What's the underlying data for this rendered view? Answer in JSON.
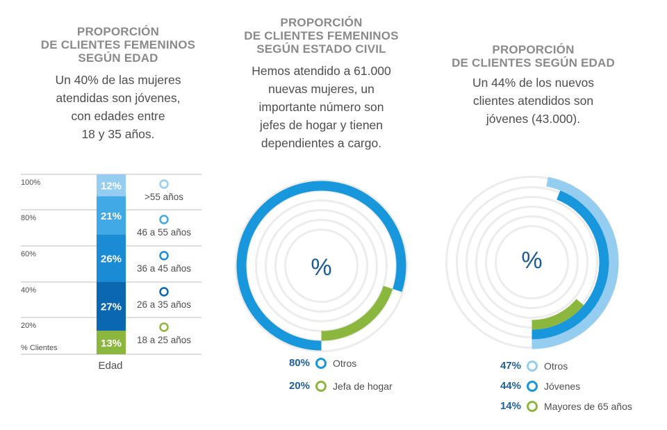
{
  "panels": [
    {
      "title_lines": [
        "PROPORCIÓN",
        "DE CLIENTES FEMENINOS",
        "SEGÚN EDAD"
      ],
      "desc_lines": [
        "Un 40% de las mujeres",
        "atendidas son jóvenes,",
        "con edades entre",
        "18 y 35 años."
      ]
    },
    {
      "title_lines": [
        "PROPORCIÓN",
        "DE CLIENTES FEMENINOS",
        "SEGÚN ESTADO CIVIL"
      ],
      "desc_lines": [
        "Hemos atendido a 61.000",
        "nuevas mujeres, un",
        "importante número son",
        "jefes de hogar y tienen",
        "dependientes a cargo."
      ]
    },
    {
      "title_lines": [
        "PROPORCIÓN",
        "DE CLIENTES SEGÚN EDAD"
      ],
      "desc_lines": [
        "Un 44% de los nuevos",
        "clientes atendidos son",
        "jóvenes (43.000)."
      ]
    }
  ],
  "chart_data": [
    {
      "type": "bar",
      "stacked": true,
      "categories": [
        "Edad"
      ],
      "xlabel": "Edad",
      "ylabel": "% Clientes",
      "y_ticks": [
        "100%",
        "80%",
        "60%",
        "40%",
        "20%"
      ],
      "series": [
        {
          "name": "18 a 25 años",
          "value": 13,
          "label": "13%",
          "color": "#8cb73f"
        },
        {
          "name": "26 a 35 años",
          "value": 27,
          "label": "27%",
          "color": "#0a67b0"
        },
        {
          "name": "36 a 45 años",
          "value": 26,
          "label": "26%",
          "color": "#1b8bd6"
        },
        {
          "name": "46 a 55 años",
          "value": 21,
          "label": "21%",
          "color": "#41a9e6"
        },
        {
          "name": ">55 años",
          "value": 12,
          "label": "12%",
          "color": "#95cdf0"
        }
      ],
      "center_symbol": ""
    },
    {
      "type": "pie",
      "style": "concentric-rings",
      "center_symbol": "%",
      "series": [
        {
          "name": "Otros",
          "value": 80,
          "label": "80%",
          "color": "#1997dc"
        },
        {
          "name": "Jefa de hogar",
          "value": 20,
          "label": "20%",
          "color": "#8cb73f"
        }
      ]
    },
    {
      "type": "pie",
      "style": "concentric-rings",
      "center_symbol": "%",
      "series": [
        {
          "name": "Otros",
          "value": 47,
          "label": "47%",
          "color": "#95cdf0"
        },
        {
          "name": "Jóvenes",
          "value": 44,
          "label": "44%",
          "color": "#1997dc"
        },
        {
          "name": "Mayores de 65 años",
          "value": 14,
          "label": "14%",
          "color": "#8cb73f"
        }
      ]
    }
  ],
  "colors": {
    "ring_bg": "#ececec",
    "legend_pct": "#1f5f9e",
    "title": "#8a8a8a",
    "grid": "#bdbdbd"
  }
}
